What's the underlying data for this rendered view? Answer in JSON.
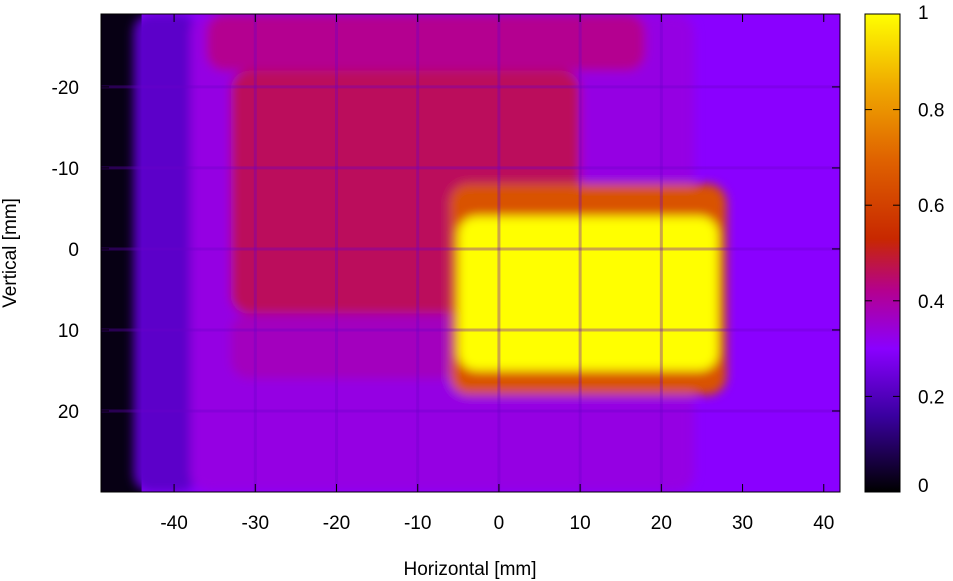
{
  "chart_data": {
    "type": "heatmap",
    "title": "",
    "xlabel": "Horizontal [mm]",
    "ylabel": "Vertical [mm]",
    "xlim": [
      -49,
      42
    ],
    "ylim": [
      -29,
      30
    ],
    "y_axis_inverted": true,
    "x_ticks": [
      -40,
      -30,
      -20,
      -10,
      0,
      10,
      20,
      30,
      40
    ],
    "x_tick_labels": [
      "-40",
      "-30",
      "-20",
      "-10",
      "0",
      "10",
      "20",
      "30",
      "40"
    ],
    "y_ticks": [
      -20,
      -10,
      0,
      10,
      20
    ],
    "y_tick_labels": [
      "-20",
      "-10",
      "0",
      "10",
      "20"
    ],
    "colorbar": {
      "min": 0,
      "max": 1,
      "ticks": [
        0,
        0.2,
        0.4,
        0.6,
        0.8,
        1
      ],
      "tick_labels": [
        "0",
        "0.2",
        "0.4",
        "0.6",
        "0.8",
        "1"
      ],
      "colormap": "black-blue-purple-red-orange-yellow",
      "colors": [
        "#000000",
        "#3a00a0",
        "#8a00ff",
        "#b40090",
        "#c82800",
        "#e06400",
        "#f0aa00",
        "#ffff00"
      ]
    },
    "regions": [
      {
        "x": [
          -45,
          -37
        ],
        "y": [
          -29,
          30
        ],
        "value": 0.22
      },
      {
        "x": [
          -38,
          24
        ],
        "y": [
          -29,
          30
        ],
        "value": 0.33
      },
      {
        "x": [
          -36,
          18
        ],
        "y": [
          -29,
          -22
        ],
        "value": 0.42
      },
      {
        "x": [
          -33,
          10
        ],
        "y": [
          -22,
          8
        ],
        "value": 0.46
      },
      {
        "x": [
          -33,
          -5
        ],
        "y": [
          8,
          16
        ],
        "value": 0.37
      },
      {
        "x": [
          -6,
          28
        ],
        "y": [
          -8,
          18
        ],
        "value": 0.65
      },
      {
        "x": [
          -5,
          27
        ],
        "y": [
          -4,
          15
        ],
        "value": 1.0
      }
    ],
    "grid_x": [
      -30,
      -20,
      -10,
      0,
      10,
      20
    ],
    "grid_y": [
      -20,
      -10,
      0,
      10,
      20
    ],
    "grid": false
  }
}
